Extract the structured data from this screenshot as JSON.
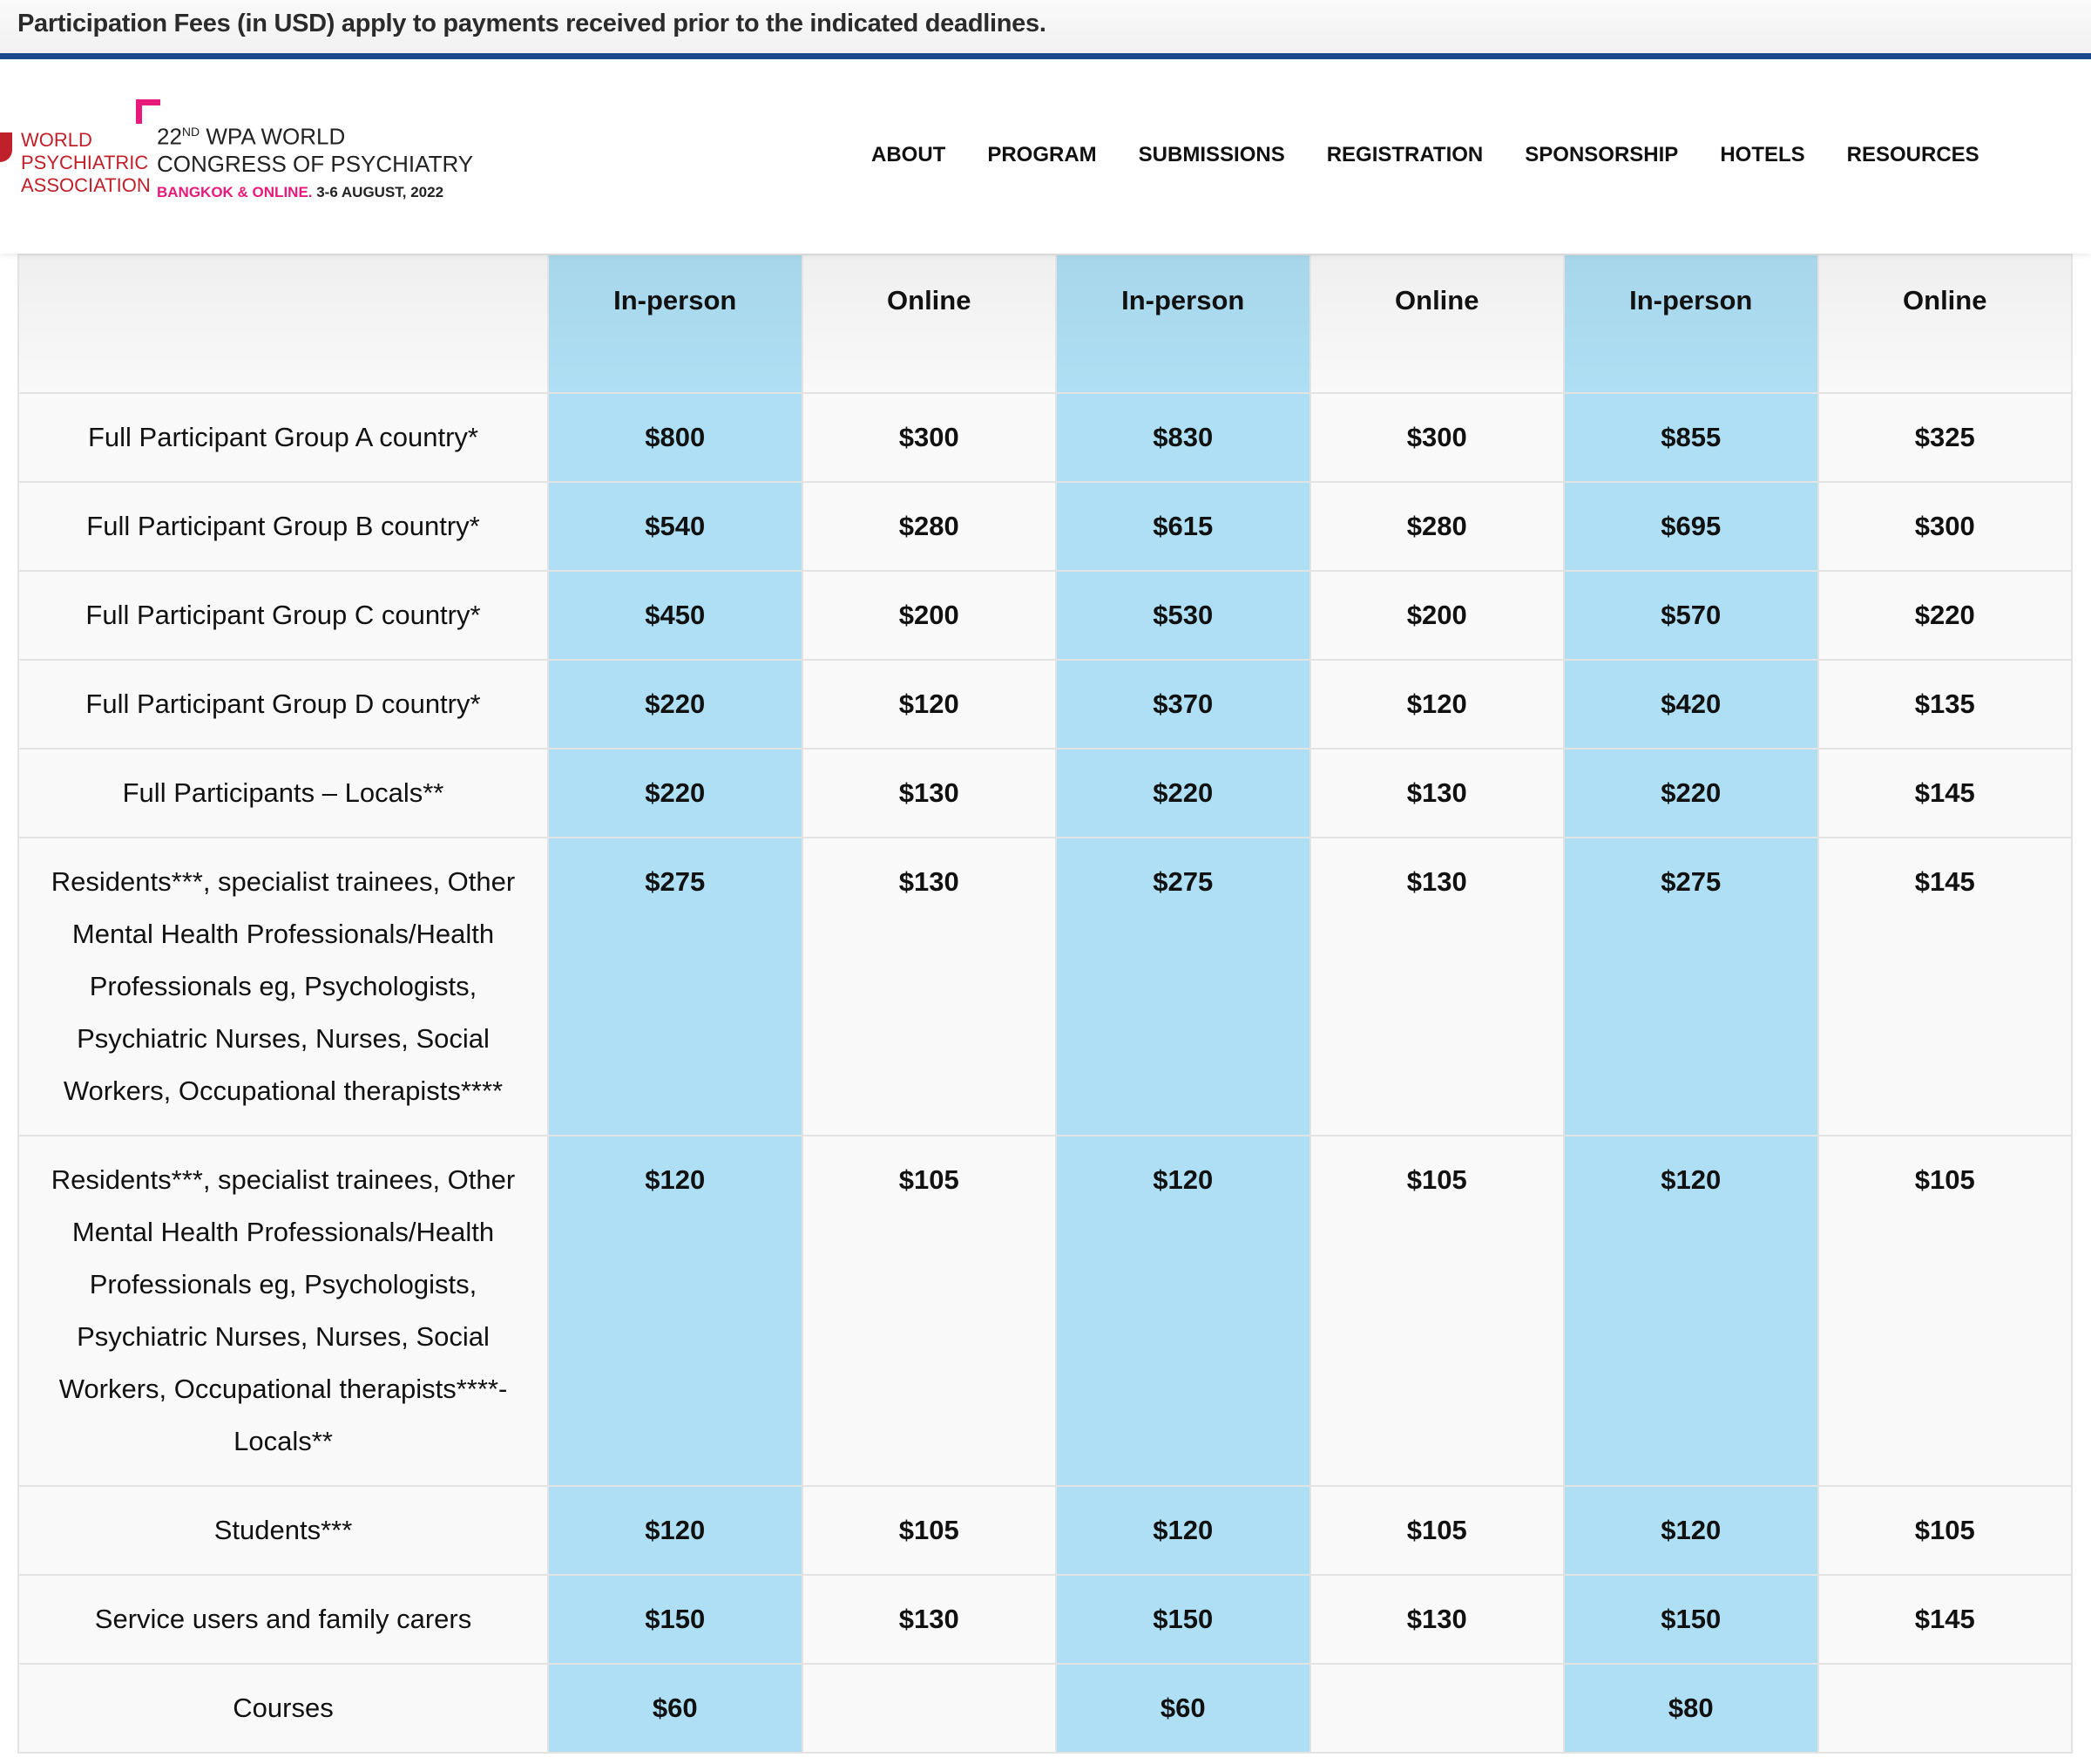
{
  "notice": "Participation Fees (in USD) apply to payments received prior to the indicated deadlines.",
  "logo": {
    "org_lines": [
      "WORLD",
      "PSYCHIATRIC",
      "ASSOCIATION"
    ],
    "congress_number": "22",
    "congress_suffix": "ND",
    "congress_line1": " WPA WORLD",
    "congress_line2": "CONGRESS OF PSYCHIATRY",
    "location": "BANGKOK & ONLINE.",
    "dates": " 3-6 AUGUST, 2022",
    "colors": {
      "red": "#c0202a",
      "pink": "#e8197a"
    }
  },
  "nav": [
    "ABOUT",
    "PROGRAM",
    "SUBMISSIONS",
    "REGISTRATION",
    "SPONSORSHIP",
    "HOTELS",
    "RESOURCES"
  ],
  "colors": {
    "accent_rule": "#1a4a8c",
    "inperson_column": "#aedff4"
  },
  "table": {
    "headers": [
      "",
      "In-person",
      "Online",
      "In-person",
      "Online",
      "In-person",
      "Online"
    ],
    "rows": [
      [
        "Full Participant Group A country*",
        "$800",
        "$300",
        "$830",
        "$300",
        "$855",
        "$325"
      ],
      [
        "Full Participant Group B country*",
        "$540",
        "$280",
        "$615",
        "$280",
        "$695",
        "$300"
      ],
      [
        "Full Participant Group C country*",
        "$450",
        "$200",
        "$530",
        "$200",
        "$570",
        "$220"
      ],
      [
        "Full Participant Group D country*",
        "$220",
        "$120",
        "$370",
        "$120",
        "$420",
        "$135"
      ],
      [
        "Full Participants – Locals**",
        "$220",
        "$130",
        "$220",
        "$130",
        "$220",
        "$145"
      ],
      [
        "Residents***, specialist trainees, Other Mental Health Professionals/Health Professionals eg, Psychologists, Psychiatric Nurses, Nurses, Social Workers, Occupational therapists****",
        "$275",
        "$130",
        "$275",
        "$130",
        "$275",
        "$145"
      ],
      [
        "Residents***, specialist trainees, Other Mental Health Professionals/Health Professionals eg, Psychologists, Psychiatric Nurses, Nurses, Social Workers, Occupational therapists****-Locals**",
        "$120",
        "$105",
        "$120",
        "$105",
        "$120",
        "$105"
      ],
      [
        "Students***",
        "$120",
        "$105",
        "$120",
        "$105",
        "$120",
        "$105"
      ],
      [
        "Service users and family carers",
        "$150",
        "$130",
        "$150",
        "$130",
        "$150",
        "$145"
      ],
      [
        "Courses",
        "$60",
        "",
        "$60",
        "",
        "$80",
        ""
      ]
    ]
  }
}
